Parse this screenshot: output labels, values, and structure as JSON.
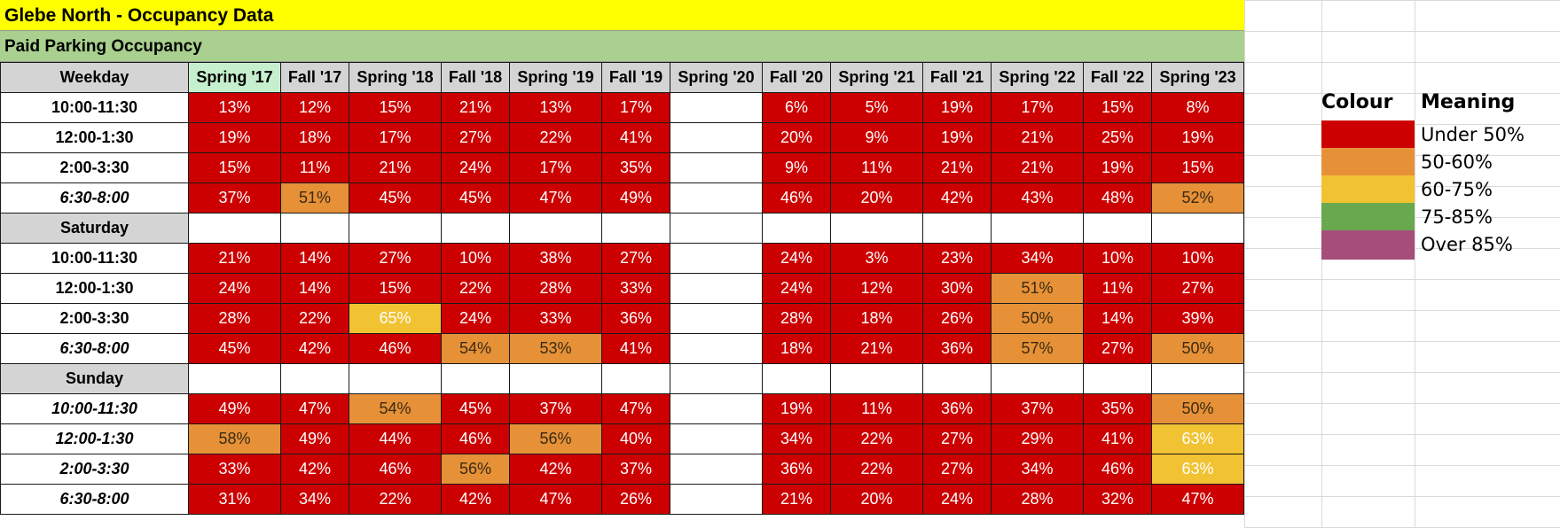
{
  "title": "Glebe North - Occupancy Data",
  "subtitle": "Paid Parking Occupancy",
  "header_label": "Weekday",
  "columns": [
    "Spring '17",
    "Fall '17",
    "Spring '18",
    "Fall '18",
    "Spring '19",
    "Fall '19",
    "Spring '20",
    "Fall '20",
    "Spring '21",
    "Fall '21",
    "Spring '22",
    "Fall '22",
    "Spring '23"
  ],
  "colors": {
    "under_50": "#cc0000",
    "50_60": "#e69138",
    "60_75": "#f1c232",
    "75_85": "#6aa84f",
    "over_85": "#a64d79"
  },
  "sections": [
    {
      "label": "Weekday",
      "rows": [
        {
          "time": "10:00-11:30",
          "italic": false,
          "values": [
            "13%",
            "12%",
            "15%",
            "21%",
            "13%",
            "17%",
            "",
            "6%",
            "5%",
            "19%",
            "17%",
            "15%",
            "8%"
          ]
        },
        {
          "time": "12:00-1:30",
          "italic": false,
          "values": [
            "19%",
            "18%",
            "17%",
            "27%",
            "22%",
            "41%",
            "",
            "20%",
            "9%",
            "19%",
            "21%",
            "25%",
            "19%"
          ]
        },
        {
          "time": "2:00-3:30",
          "italic": false,
          "values": [
            "15%",
            "11%",
            "21%",
            "24%",
            "17%",
            "35%",
            "",
            "9%",
            "11%",
            "21%",
            "21%",
            "19%",
            "15%"
          ]
        },
        {
          "time": "6:30-8:00",
          "italic": true,
          "values": [
            "37%",
            "51%",
            "45%",
            "45%",
            "47%",
            "49%",
            "",
            "46%",
            "20%",
            "42%",
            "43%",
            "48%",
            "52%"
          ]
        }
      ]
    },
    {
      "label": "Saturday",
      "rows": [
        {
          "time": "10:00-11:30",
          "italic": false,
          "values": [
            "21%",
            "14%",
            "27%",
            "10%",
            "38%",
            "27%",
            "",
            "24%",
            "3%",
            "23%",
            "34%",
            "10%",
            "10%"
          ]
        },
        {
          "time": "12:00-1:30",
          "italic": false,
          "values": [
            "24%",
            "14%",
            "15%",
            "22%",
            "28%",
            "33%",
            "",
            "24%",
            "12%",
            "30%",
            "51%",
            "11%",
            "27%"
          ]
        },
        {
          "time": "2:00-3:30",
          "italic": false,
          "values": [
            "28%",
            "22%",
            "65%",
            "24%",
            "33%",
            "36%",
            "",
            "28%",
            "18%",
            "26%",
            "50%",
            "14%",
            "39%"
          ]
        },
        {
          "time": "6:30-8:00",
          "italic": true,
          "values": [
            "45%",
            "42%",
            "46%",
            "54%",
            "53%",
            "41%",
            "",
            "18%",
            "21%",
            "36%",
            "57%",
            "27%",
            "50%"
          ]
        }
      ]
    },
    {
      "label": "Sunday",
      "rows": [
        {
          "time": "10:00-11:30",
          "italic": true,
          "values": [
            "49%",
            "47%",
            "54%",
            "45%",
            "37%",
            "47%",
            "",
            "19%",
            "11%",
            "36%",
            "37%",
            "35%",
            "50%"
          ]
        },
        {
          "time": "12:00-1:30",
          "italic": true,
          "values": [
            "58%",
            "49%",
            "44%",
            "46%",
            "56%",
            "40%",
            "",
            "34%",
            "22%",
            "27%",
            "29%",
            "41%",
            "63%"
          ]
        },
        {
          "time": "2:00-3:30",
          "italic": true,
          "values": [
            "33%",
            "42%",
            "46%",
            "56%",
            "42%",
            "37%",
            "",
            "36%",
            "22%",
            "27%",
            "34%",
            "46%",
            "63%"
          ]
        },
        {
          "time": "6:30-8:00",
          "italic": true,
          "values": [
            "31%",
            "34%",
            "22%",
            "42%",
            "47%",
            "26%",
            "",
            "21%",
            "20%",
            "24%",
            "28%",
            "32%",
            "47%"
          ]
        }
      ]
    }
  ],
  "legend": {
    "colour_header": "Colour",
    "meaning_header": "Meaning",
    "items": [
      {
        "label": "Under 50%",
        "color": "#cc0000"
      },
      {
        "label": "50-60%",
        "color": "#e69138"
      },
      {
        "label": "60-75%",
        "color": "#f1c232"
      },
      {
        "label": "75-85%",
        "color": "#6aa84f"
      },
      {
        "label": "Over 85%",
        "color": "#a64d79"
      }
    ]
  }
}
